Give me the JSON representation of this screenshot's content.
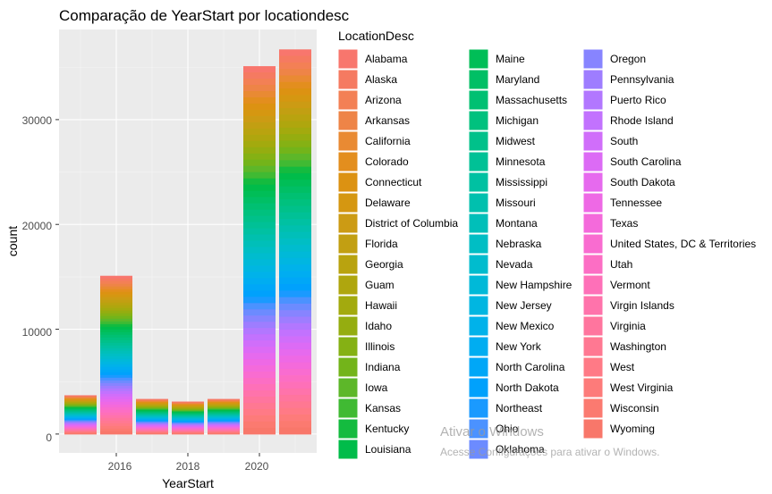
{
  "chart_data": {
    "type": "bar",
    "title": "Comparação de YearStart por locationdesc",
    "xlabel": "YearStart",
    "ylabel": "count",
    "x_ticks": [
      "2016",
      "2018",
      "2020"
    ],
    "y_ticks": [
      "0",
      "10000",
      "20000",
      "30000"
    ],
    "xlim": [
      2014.4,
      2021.6
    ],
    "ylim": [
      -1800,
      38600
    ],
    "stacked": true,
    "background": "#ebebeb",
    "grid": true,
    "legend_title": "LocationDesc",
    "legend_position": "right",
    "totals": [
      {
        "x": 2015,
        "value": 3700
      },
      {
        "x": 2016,
        "value": 15100
      },
      {
        "x": 2017,
        "value": 3350
      },
      {
        "x": 2018,
        "value": 3100
      },
      {
        "x": 2019,
        "value": 3350
      },
      {
        "x": 2020,
        "value": 35100
      },
      {
        "x": 2021,
        "value": 36700
      }
    ],
    "categories": [
      "Alabama",
      "Alaska",
      "Arizona",
      "Arkansas",
      "California",
      "Colorado",
      "Connecticut",
      "Delaware",
      "District of Columbia",
      "Florida",
      "Georgia",
      "Guam",
      "Hawaii",
      "Idaho",
      "Illinois",
      "Indiana",
      "Iowa",
      "Kansas",
      "Kentucky",
      "Louisiana",
      "Maine",
      "Maryland",
      "Massachusetts",
      "Michigan",
      "Midwest",
      "Minnesota",
      "Mississippi",
      "Missouri",
      "Montana",
      "Nebraska",
      "Nevada",
      "New Hampshire",
      "New Jersey",
      "New Mexico",
      "New York",
      "North Carolina",
      "North Dakota",
      "Northeast",
      "Ohio",
      "Oklahoma",
      "Oregon",
      "Pennsylvania",
      "Puerto Rico",
      "Rhode Island",
      "South",
      "South Carolina",
      "South Dakota",
      "Tennessee",
      "Texas",
      "United States, DC & Territories",
      "Utah",
      "Vermont",
      "Virgin Islands",
      "Virginia",
      "Washington",
      "West",
      "West Virginia",
      "Wisconsin",
      "Wyoming"
    ],
    "colors": [
      "#F8766D",
      "#F57A61",
      "#F38055",
      "#EE8447",
      "#E98A33",
      "#E38E1E",
      "#DC9212",
      "#D59711",
      "#CC9B14",
      "#C29F12",
      "#B9A30F",
      "#AFA60E",
      "#A3AA0E",
      "#95AD10",
      "#85B114",
      "#73B41A",
      "#5DB729",
      "#40BA33",
      "#14BB3F",
      "#00BC4A",
      "#00BE57",
      "#00BF65",
      "#00C072",
      "#00C17E",
      "#00C18A",
      "#00C196",
      "#00C1A2",
      "#00C0AE",
      "#00BFB9",
      "#00BEC4",
      "#00BCCE",
      "#00B9D8",
      "#00B6E1",
      "#00B2EA",
      "#00ADF1",
      "#00A7F7",
      "#00A1FC",
      "#1A9AFF",
      "#4B92FF",
      "#6C8BFF",
      "#8784FF",
      "#9E7DFF",
      "#B277FF",
      "#C272FE",
      "#D06EFA",
      "#DC6BF5",
      "#E66AEE",
      "#EE69E5",
      "#F46ADB",
      "#F96CD0",
      "#FC6EC4",
      "#FE70B8",
      "#FF73AB",
      "#FF759E",
      "#FF7892",
      "#FF7A86",
      "#FD7B7A",
      "#FB7A70",
      "#F8776A"
    ]
  },
  "watermark": {
    "line1": "Ativar o Windows",
    "line2": "Acesse Configurações para ativar o Windows."
  }
}
